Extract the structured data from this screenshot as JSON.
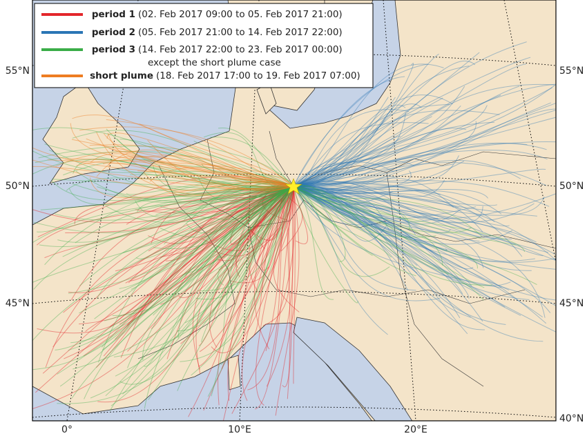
{
  "legend": [
    {
      "name": "period 1",
      "color": "#e3262b",
      "period": "(02. Feb 2017 09:00 to 05. Feb 2017 21:00)"
    },
    {
      "name": "period 2",
      "color": "#2a75b5",
      "period": "(05. Feb 2017 21:00 to 14. Feb 2017 22:00)"
    },
    {
      "name": "period 3",
      "color": "#3aad48",
      "period": "(14. Feb 2017 22:00 to 23. Feb 2017 00:00)"
    },
    {
      "name": "short plume",
      "color": "#ee7d22",
      "period": "(18. Feb 2017 17:00 to 19. Feb 2017 07:00)"
    }
  ],
  "legend_note": "except the short plume case",
  "lat_labels_left": [
    "55°N",
    "50°N",
    "45°N"
  ],
  "lat_labels_right": [
    "55°N",
    "50°N",
    "45°N",
    "40°N"
  ],
  "lon_labels": [
    "0°",
    "10°E",
    "20°E"
  ]
}
